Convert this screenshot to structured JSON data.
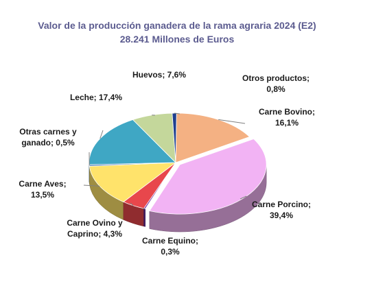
{
  "chart_data": {
    "type": "pie",
    "title": "Valor de la producción ganadera de la rama agraria 2024 (E2)",
    "subtitle": "28.241  Millones de Euros",
    "slices": [
      {
        "name": "Carne Bovino",
        "value": 16.1,
        "label_line1": "Carne Bovino;",
        "label_line2": "16,1%",
        "color": "#f4b183"
      },
      {
        "name": "Carne Porcino",
        "value": 39.4,
        "label_line1": "Carne Porcino;",
        "label_line2": "39,4%",
        "color": "#f2b3f4"
      },
      {
        "name": "Carne Equino",
        "value": 0.3,
        "label_line1": "Carne Equino;",
        "label_line2": "0,3%",
        "color": "#7030a0"
      },
      {
        "name": "Carne Ovino y Caprino",
        "value": 4.3,
        "label_line1": "Carne Ovino y",
        "label_line2": "Caprino; 4,3%",
        "color": "#e8474c"
      },
      {
        "name": "Carne Aves",
        "value": 13.5,
        "label_line1": "Carne Aves;",
        "label_line2": "13,5%",
        "color": "#ffe36b"
      },
      {
        "name": "Otras carnes y ganado",
        "value": 0.5,
        "label_line1": "Otras carnes y",
        "label_line2": "ganado; 0,5%",
        "color": "#4f81bd"
      },
      {
        "name": "Leche",
        "value": 17.4,
        "label_line1": "Leche; 17,4%",
        "label_line2": "",
        "color": "#3fa7c4"
      },
      {
        "name": "Huevos",
        "value": 7.6,
        "label_line1": "Huevos; 7,6%",
        "label_line2": "",
        "color": "#c4d79b"
      },
      {
        "name": "Otros productos",
        "value": 0.8,
        "label_line1": "Otros productos;",
        "label_line2": "0,8%",
        "color": "#1f3f8f"
      }
    ],
    "legend": "none"
  }
}
